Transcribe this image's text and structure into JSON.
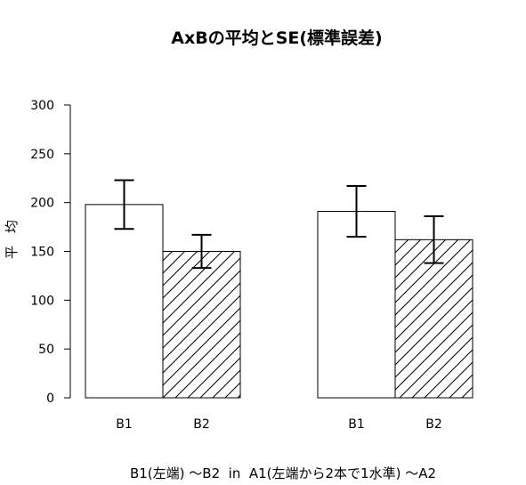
{
  "chart_data": {
    "type": "bar",
    "title": "AxBの平均とSE(標準誤差)",
    "xlabel": "B1(左端) ～B2  in  A1(左端から2本で1水準) ～A2",
    "ylabel": "平均",
    "ylim": [
      0,
      300
    ],
    "yticks": [
      0,
      50,
      100,
      150,
      200,
      250,
      300
    ],
    "categories": [
      "B1",
      "B2"
    ],
    "groups": [
      {
        "values": [
          198,
          150
        ],
        "se": [
          25,
          17
        ]
      },
      {
        "values": [
          191,
          162
        ],
        "se": [
          26,
          24
        ]
      }
    ],
    "bar_colors": [
      "#ffffff",
      "#ffffff"
    ],
    "hatched": [
      false,
      true
    ],
    "outline_color": "#000000",
    "grid": false,
    "legend": false
  }
}
